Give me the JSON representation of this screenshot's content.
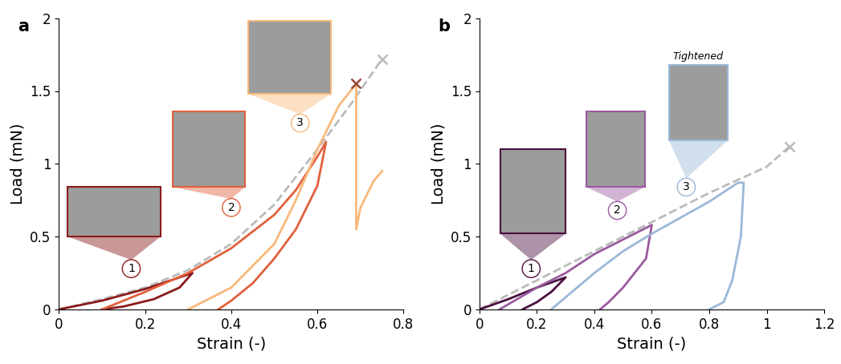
{
  "chart_data": [
    {
      "type": "line",
      "title": "a",
      "x_label": "Strain (-)",
      "y_label": "Load (mN)",
      "xlim": [
        0,
        0.8
      ],
      "xticks": [
        0,
        0.2,
        0.4,
        0.6,
        0.8
      ],
      "ylim": [
        0,
        2
      ],
      "yticks": [
        0,
        0.5,
        1,
        1.5,
        2
      ],
      "annotations": [
        {
          "text": "1",
          "color": "#8b1a1a"
        },
        {
          "text": "2",
          "color": "#e0603c"
        },
        {
          "text": "3",
          "color": "#f7b87a"
        }
      ],
      "series": [
        {
          "color": "#bbbbbb",
          "line_style": "dashed",
          "marker": "x",
          "x": [
            0,
            0.1,
            0.2,
            0.3,
            0.4,
            0.5,
            0.6,
            0.68,
            0.75
          ],
          "values": [
            0,
            0.07,
            0.15,
            0.27,
            0.45,
            0.72,
            1.1,
            1.42,
            1.72
          ]
        },
        {
          "color": "#8b1a1a",
          "line_style": "solid",
          "x": [
            0,
            0.05,
            0.1,
            0.15,
            0.2,
            0.25,
            0.31,
            0.28,
            0.22,
            0.15,
            0.1
          ],
          "values": [
            0,
            0.03,
            0.06,
            0.1,
            0.14,
            0.19,
            0.25,
            0.15,
            0.07,
            0.02,
            0
          ]
        },
        {
          "color": "#e0603c",
          "line_style": "solid",
          "x": [
            0.1,
            0.2,
            0.3,
            0.4,
            0.5,
            0.55,
            0.6,
            0.62,
            0.6,
            0.55,
            0.5,
            0.45,
            0.4,
            0.37
          ],
          "values": [
            0,
            0.12,
            0.25,
            0.42,
            0.65,
            0.82,
            1.05,
            1.15,
            0.85,
            0.55,
            0.35,
            0.18,
            0.06,
            0
          ]
        },
        {
          "color": "#f7b87a",
          "line_style": "solid",
          "x": [
            0.3,
            0.4,
            0.5,
            0.55,
            0.6,
            0.65,
            0.69,
            0.69,
            0.69,
            0.7,
            0.73,
            0.75
          ],
          "values": [
            0,
            0.15,
            0.45,
            0.75,
            1.1,
            1.4,
            1.55,
            1.2,
            0.55,
            0.7,
            0.88,
            0.95
          ]
        },
        {
          "color": "#9b4a3a",
          "line_style": "solid",
          "marker": "x",
          "x": [
            0.69
          ],
          "values": [
            1.55
          ]
        }
      ]
    },
    {
      "type": "line",
      "title": "b",
      "x_label": "Strain (-)",
      "y_label": "Load (mN)",
      "xlim": [
        0,
        1.2
      ],
      "xticks": [
        0,
        0.2,
        0.4,
        0.6,
        0.8,
        1,
        1.2
      ],
      "ylim": [
        0,
        2
      ],
      "yticks": [
        0,
        0.5,
        1,
        1.5,
        2
      ],
      "annotations": [
        {
          "text": "1",
          "color": "#4a1040"
        },
        {
          "text": "2",
          "color": "#9a5aa0"
        },
        {
          "text": "3",
          "color": "#9ab8d8",
          "caption": "Tightened"
        }
      ],
      "series": [
        {
          "color": "#bbbbbb",
          "line_style": "dashed",
          "marker": "x",
          "x": [
            0,
            0.2,
            0.4,
            0.6,
            0.8,
            1.0,
            1.08
          ],
          "values": [
            0,
            0.2,
            0.4,
            0.6,
            0.8,
            0.98,
            1.12
          ]
        },
        {
          "color": "#4a1040",
          "line_style": "solid",
          "x": [
            0,
            0.1,
            0.2,
            0.3,
            0.25,
            0.2,
            0.15
          ],
          "values": [
            0,
            0.07,
            0.15,
            0.22,
            0.12,
            0.05,
            0
          ]
        },
        {
          "color": "#9a5aa0",
          "line_style": "solid",
          "x": [
            0.07,
            0.2,
            0.3,
            0.4,
            0.5,
            0.6,
            0.58,
            0.5,
            0.45,
            0.42
          ],
          "values": [
            0,
            0.15,
            0.25,
            0.38,
            0.48,
            0.58,
            0.35,
            0.15,
            0.05,
            0
          ]
        },
        {
          "color": "#9ab8d8",
          "line_style": "solid",
          "x": [
            0.25,
            0.4,
            0.5,
            0.6,
            0.7,
            0.8,
            0.9,
            0.92,
            0.91,
            0.88,
            0.85,
            0.8
          ],
          "values": [
            0,
            0.25,
            0.4,
            0.52,
            0.63,
            0.74,
            0.87,
            0.87,
            0.5,
            0.2,
            0.05,
            0
          ]
        }
      ]
    }
  ]
}
